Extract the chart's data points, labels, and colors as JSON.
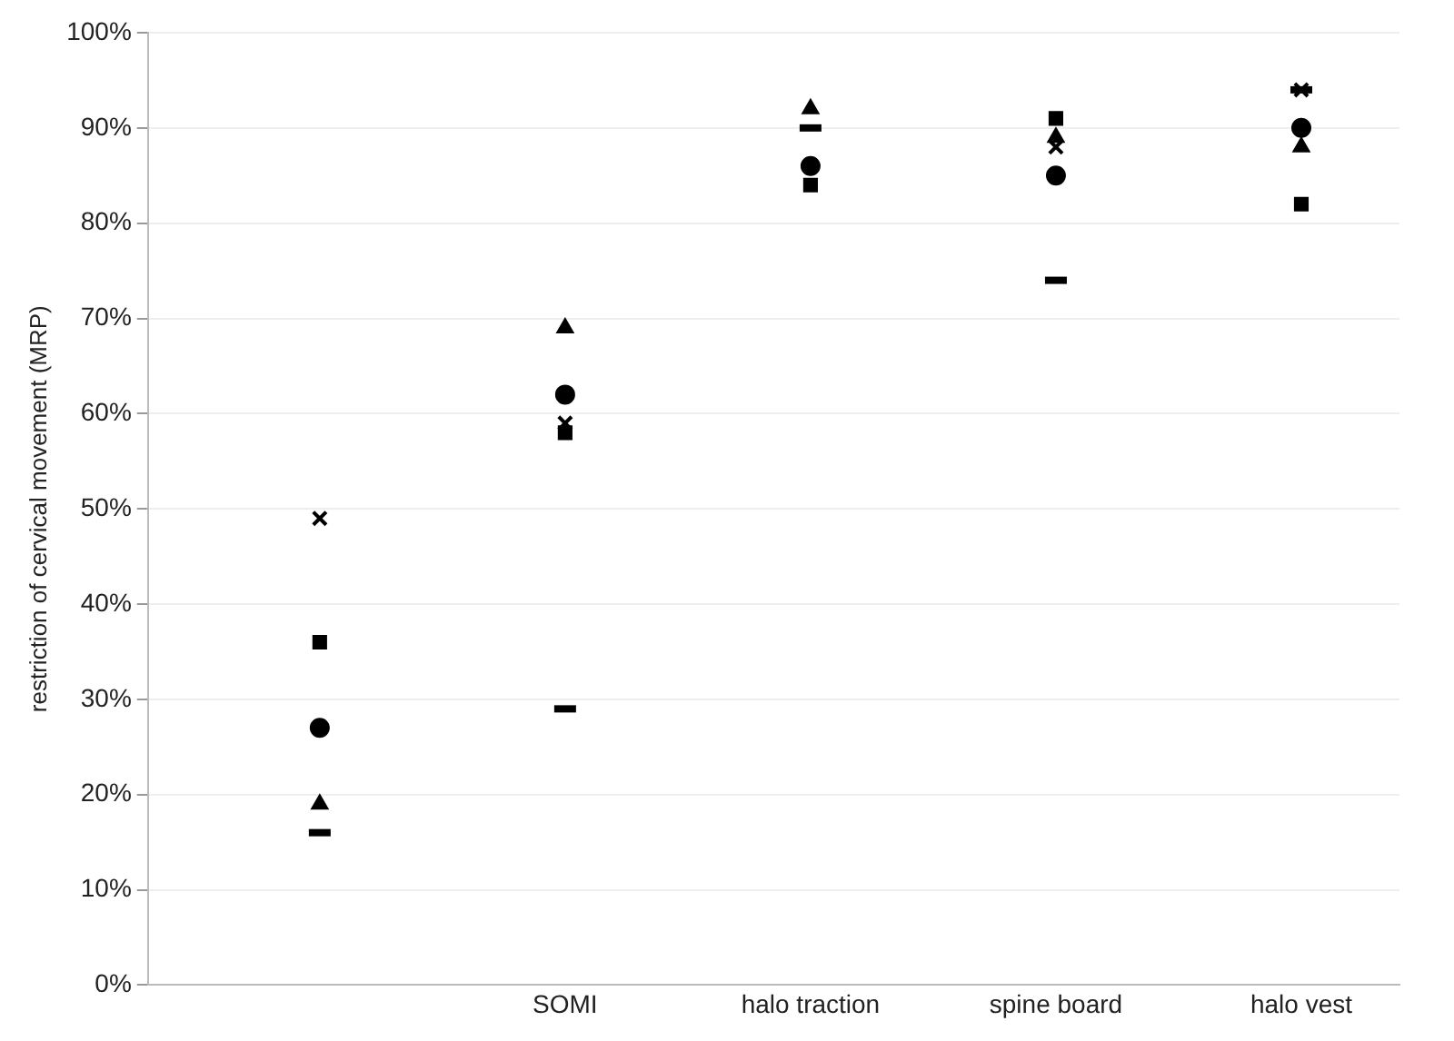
{
  "chart_data": {
    "type": "scatter",
    "ylabel": "restriction of cervical movement (MRP)",
    "categories": [
      null,
      "SOMI",
      "halo traction",
      "spine board",
      "halo vest"
    ],
    "ylim": [
      0,
      100
    ],
    "yticks": [
      {
        "value": 0,
        "label": "0%"
      },
      {
        "value": 10,
        "label": "10%"
      },
      {
        "value": 20,
        "label": "20%"
      },
      {
        "value": 30,
        "label": "30%"
      },
      {
        "value": 40,
        "label": "40%"
      },
      {
        "value": 50,
        "label": "50%"
      },
      {
        "value": 60,
        "label": "60%"
      },
      {
        "value": 70,
        "label": "70%"
      },
      {
        "value": 80,
        "label": "80%"
      },
      {
        "value": 90,
        "label": "90%"
      },
      {
        "value": 100,
        "label": "100%"
      }
    ],
    "grid": "y",
    "legend": false,
    "series": [
      {
        "color": "#000000",
        "marker": "cross",
        "values": [
          49,
          59,
          null,
          88,
          94
        ]
      },
      {
        "color": "#000000",
        "marker": "square",
        "values": [
          36,
          58,
          84,
          91,
          82
        ]
      },
      {
        "color": "#000000",
        "marker": "circle",
        "values": [
          27,
          62,
          86,
          85,
          90
        ]
      },
      {
        "color": "#000000",
        "marker": "triangle",
        "values": [
          19,
          69,
          92,
          89,
          88
        ]
      },
      {
        "color": "#000000",
        "values": [
          16,
          29,
          90,
          74,
          94
        ]
      }
    ]
  }
}
